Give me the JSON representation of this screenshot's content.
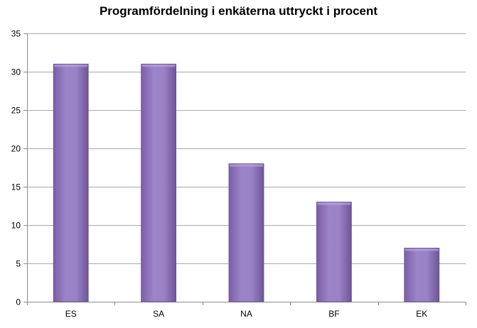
{
  "chart_data": {
    "type": "bar",
    "title": "Programfördelning i enkäterna uttryckt i procent",
    "categories": [
      "ES",
      "SA",
      "NA",
      "BF",
      "EK"
    ],
    "values": [
      31,
      31,
      18,
      13,
      7
    ],
    "xlabel": "",
    "ylabel": "",
    "ylim": [
      0,
      35
    ],
    "yticks": [
      0,
      5,
      10,
      15,
      20,
      25,
      30,
      35
    ],
    "grid": true,
    "legend": "none",
    "bar_color": "#8a70b4"
  }
}
